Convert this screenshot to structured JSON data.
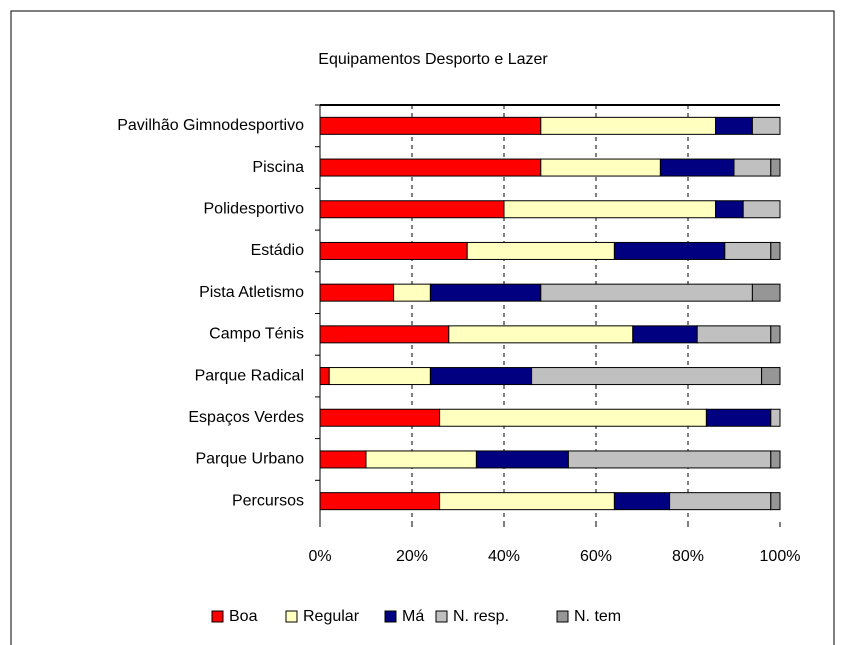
{
  "chart_data": {
    "type": "stacked_bar_horizontal",
    "title": "Equipamentos Desporto e Lazer",
    "categories": [
      "Pavilhão Gimnodesportivo",
      "Piscina",
      "Polidesportivo",
      "Estádio",
      "Pista Atletismo",
      "Campo Ténis",
      "Parque Radical",
      "Espaços Verdes",
      "Parque Urbano",
      "Percursos"
    ],
    "series": [
      {
        "name": "Boa",
        "color": "#ff0000",
        "values": [
          48,
          48,
          40,
          32,
          16,
          28,
          2,
          26,
          10,
          26
        ]
      },
      {
        "name": "Regular",
        "color": "#ffffc0",
        "values": [
          38,
          26,
          46,
          32,
          8,
          40,
          22,
          58,
          24,
          38
        ]
      },
      {
        "name": "Má",
        "color": "#000080",
        "values": [
          8,
          16,
          6,
          24,
          24,
          14,
          22,
          14,
          20,
          12
        ]
      },
      {
        "name": "N. resp.",
        "color": "#c0c0c0",
        "values": [
          6,
          8,
          8,
          10,
          46,
          16,
          50,
          2,
          44,
          22
        ]
      },
      {
        "name": "N. tem",
        "color": "#969696",
        "values": [
          0,
          2,
          0,
          2,
          6,
          2,
          4,
          0,
          2,
          2
        ]
      }
    ],
    "xlim": [
      0,
      100
    ],
    "xticks": [
      {
        "value": 0,
        "label": "0%"
      },
      {
        "value": 20,
        "label": "20%"
      },
      {
        "value": 40,
        "label": "40%"
      },
      {
        "value": 60,
        "label": "60%"
      },
      {
        "value": 80,
        "label": "80%"
      },
      {
        "value": 100,
        "label": "100%"
      }
    ],
    "grid": true,
    "legend": "bottom"
  }
}
